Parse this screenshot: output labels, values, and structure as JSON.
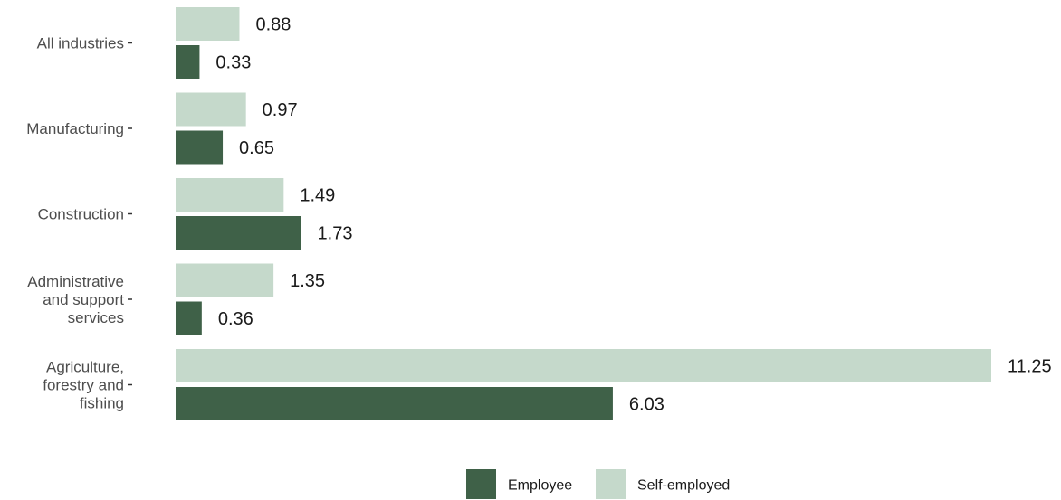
{
  "chart_data": {
    "type": "bar",
    "orientation": "horizontal",
    "categories": [
      "All industries",
      "Manufacturing",
      "Construction",
      "Administrative and support services",
      "Agriculture, forestry and fishing"
    ],
    "category_lines": [
      [
        "All industries"
      ],
      [
        "Manufacturing"
      ],
      [
        "Construction"
      ],
      [
        "Administrative",
        "and support",
        "services"
      ],
      [
        "Agriculture,",
        "forestry and",
        "fishing"
      ]
    ],
    "series": [
      {
        "name": "Self-employed",
        "color": "#c5d9cb",
        "values": [
          0.88,
          0.97,
          1.49,
          1.35,
          11.25
        ],
        "labels": [
          "0.88",
          "0.97",
          "1.49",
          "1.35",
          "11.25"
        ]
      },
      {
        "name": "Employee",
        "color": "#3f6148",
        "values": [
          0.33,
          0.65,
          1.73,
          0.36,
          6.03
        ],
        "labels": [
          "0.33",
          "0.65",
          "1.73",
          "0.36",
          "6.03"
        ]
      }
    ],
    "legend": {
      "position": "bottom",
      "order": [
        "Employee",
        "Self-employed"
      ]
    },
    "xlim": [
      0,
      11.25
    ],
    "grid": false,
    "x_axis_visible": false,
    "title": "",
    "xlabel": "",
    "ylabel": ""
  }
}
